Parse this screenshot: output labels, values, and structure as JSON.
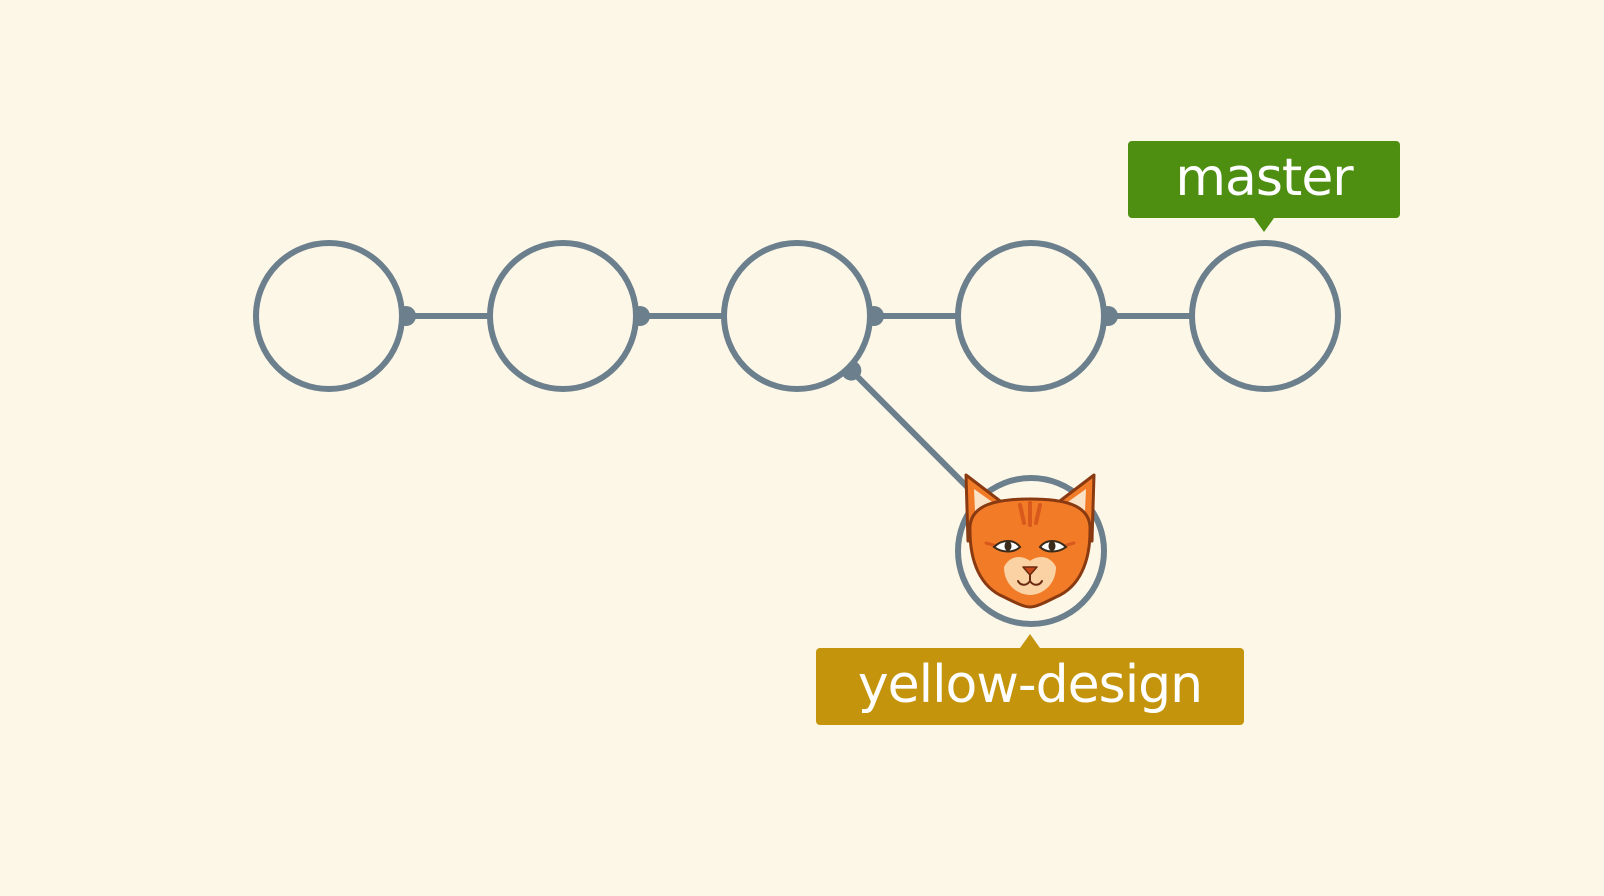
{
  "colors": {
    "background": "#fdf7e8",
    "commit_stroke": "#6b7f8c",
    "master_label": "#4e8f12",
    "yellow_design_label": "#c4950c",
    "cat_orange": "#f27b27"
  },
  "commits": [
    {
      "id": "c1"
    },
    {
      "id": "c2"
    },
    {
      "id": "c3"
    },
    {
      "id": "c4"
    },
    {
      "id": "c5"
    },
    {
      "id": "c6",
      "parent": "c3",
      "icon": "cat-icon"
    }
  ],
  "branches": {
    "master": {
      "label": "master",
      "points_to": "c5"
    },
    "yellow_design": {
      "label": "yellow-design",
      "points_to": "c6"
    }
  }
}
